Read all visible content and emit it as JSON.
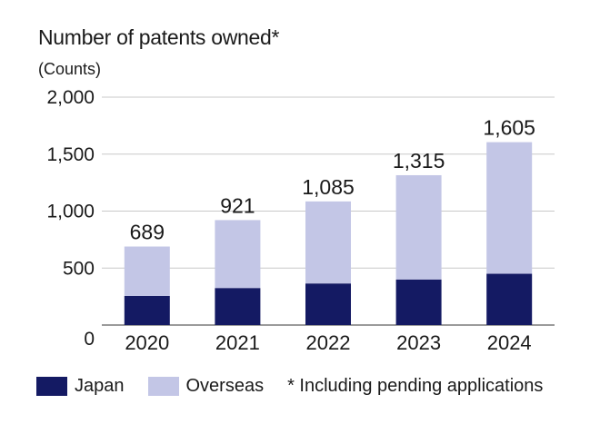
{
  "chart_data": {
    "type": "bar",
    "stacked": true,
    "title": "Number of patents owned*",
    "unit_label": "(Counts)",
    "categories": [
      "2020",
      "2021",
      "2022",
      "2023",
      "2024"
    ],
    "series": [
      {
        "name": "Japan",
        "color": "#141a63",
        "values": [
          255,
          325,
          365,
          400,
          450
        ]
      },
      {
        "name": "Overseas",
        "color": "#c3c6e6",
        "values": [
          434,
          596,
          720,
          915,
          1155
        ]
      }
    ],
    "totals": [
      "689",
      "921",
      "1,085",
      "1,315",
      "1,605"
    ],
    "total_values": [
      689,
      921,
      1085,
      1315,
      1605
    ],
    "yticks": [
      0,
      500,
      1000,
      1500,
      2000
    ],
    "ytick_labels": [
      "0",
      "500",
      "1,000",
      "1,500",
      "2,000"
    ],
    "ylim": [
      0,
      2000
    ],
    "grid": true,
    "legend_position": "bottom",
    "footnote": "* Including pending applications"
  }
}
